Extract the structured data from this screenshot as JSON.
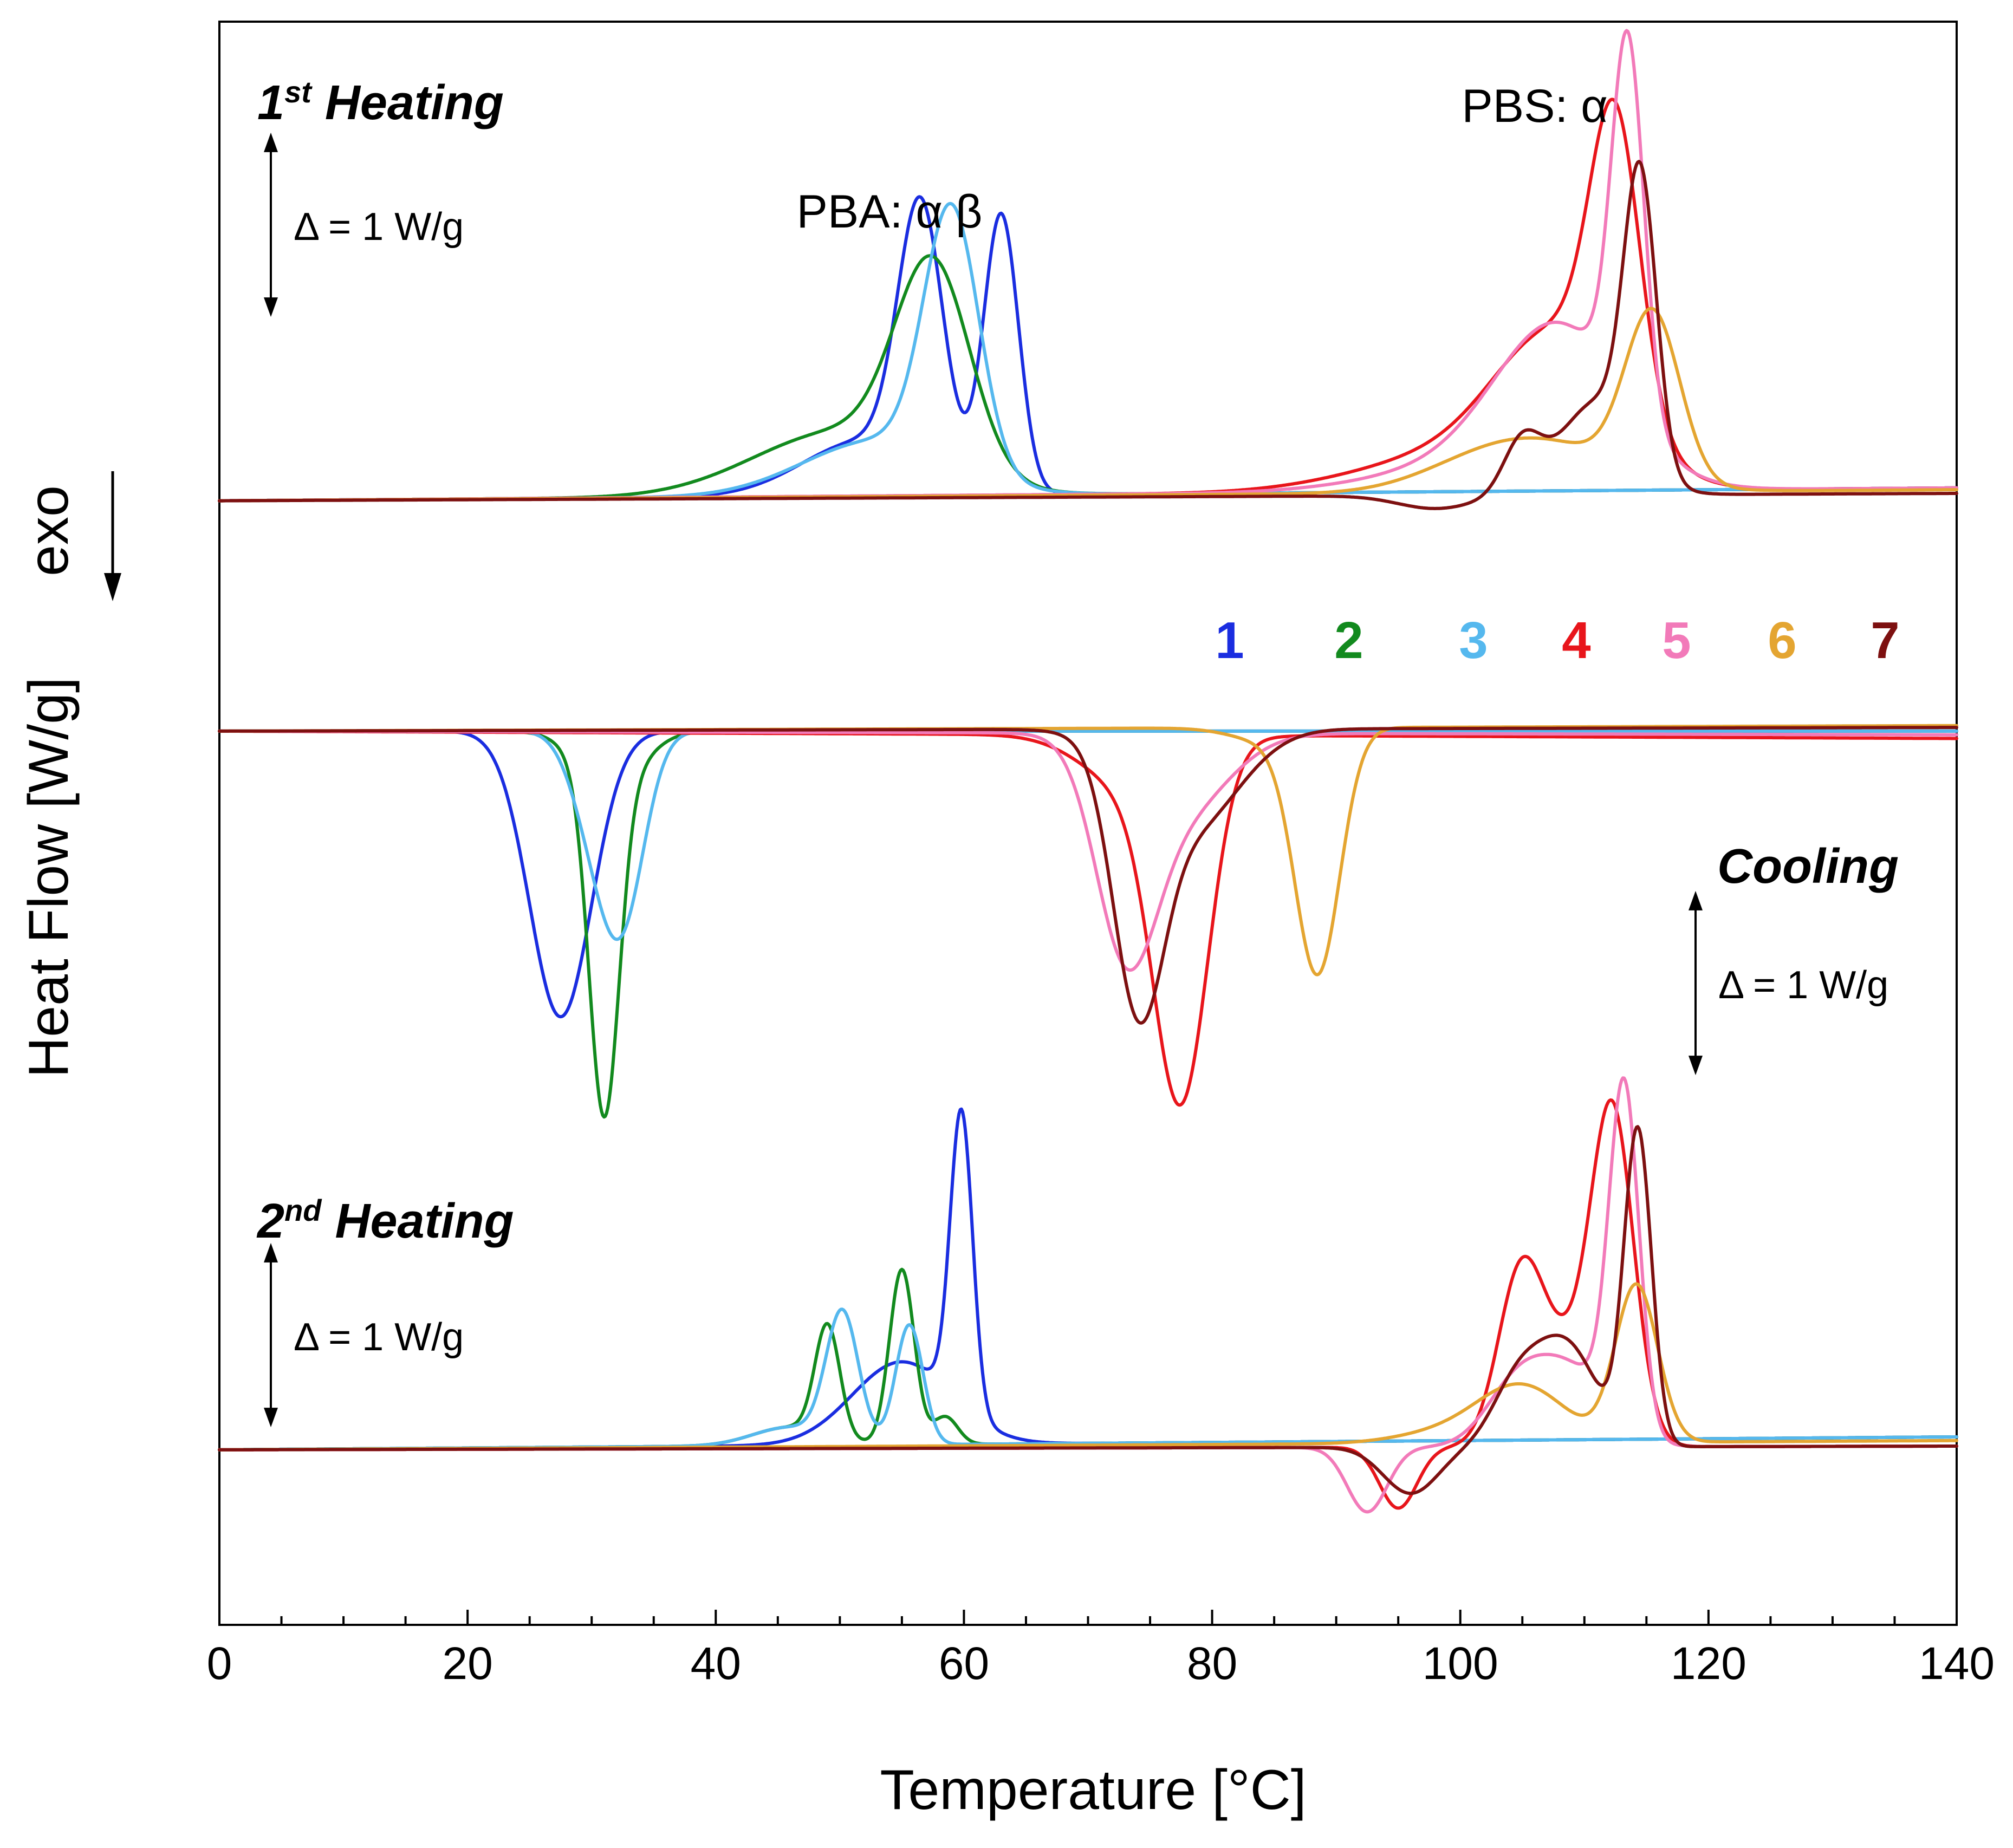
{
  "chart_data": {
    "type": "line",
    "title": "",
    "xlabel": "Temperature [°C]",
    "ylabel": "Heat Flow [W/g]",
    "exo_label": "exo",
    "xlim": [
      0,
      140
    ],
    "x_ticks": [
      0,
      20,
      40,
      60,
      80,
      100,
      120,
      140
    ],
    "ylim": [
      -6.1,
      2.6
    ],
    "legend": [
      {
        "id": "1",
        "label": "1",
        "color": "#1a2de0"
      },
      {
        "id": "2",
        "label": "2",
        "color": "#128a1e"
      },
      {
        "id": "3",
        "label": "3",
        "color": "#55b8ee"
      },
      {
        "id": "4",
        "label": "4",
        "color": "#e8151b"
      },
      {
        "id": "5",
        "label": "5",
        "color": "#f27ab9"
      },
      {
        "id": "6",
        "label": "6",
        "color": "#e4a531"
      },
      {
        "id": "7",
        "label": "7",
        "color": "#7d1010"
      }
    ],
    "panels": [
      {
        "name": "first-heating",
        "title_main": "1",
        "title_sup": "st",
        "title_rest": " Heating",
        "scale_label": "Δ = 1 W/g",
        "scale_value": 1,
        "baseline": 0,
        "annotations": [
          {
            "text": "PBA:  α    β",
            "x": 54
          },
          {
            "text": "PBS:  α",
            "x": 106
          }
        ],
        "series": [
          {
            "id": "1",
            "tilt": 0.07,
            "peaks": [
              [
                56.5,
                1.42,
                1.8
              ],
              [
                63.0,
                1.5,
                1.4
              ],
              [
                52,
                0.3,
                5
              ]
            ]
          },
          {
            "id": "2",
            "tilt": 0.07,
            "peaks": [
              [
                57.5,
                1.1,
                3.0
              ],
              [
                50,
                0.35,
                7
              ]
            ]
          },
          {
            "id": "3",
            "tilt": 0.07,
            "peaks": [
              [
                59.0,
                1.4,
                2.2
              ],
              [
                53,
                0.3,
                6
              ]
            ]
          },
          {
            "id": "4",
            "tilt": 0.07,
            "peaks": [
              [
                112.5,
                1.55,
                2.0
              ],
              [
                108,
                0.75,
                5
              ],
              [
                100,
                0.2,
                8
              ]
            ]
          },
          {
            "id": "5",
            "tilt": 0.07,
            "peaks": [
              [
                113.5,
                2.0,
                1.3
              ],
              [
                108,
                0.8,
                5
              ],
              [
                102,
                0.15,
                8
              ]
            ]
          },
          {
            "id": "6",
            "tilt": 0.06,
            "peaks": [
              [
                115.5,
                0.9,
                2.2
              ],
              [
                107,
                0.25,
                6
              ],
              [
                101,
                0.08,
                5
              ]
            ]
          },
          {
            "id": "7",
            "tilt": 0.04,
            "peaks": [
              [
                114.5,
                1.55,
                1.3
              ],
              [
                111,
                0.5,
                3
              ],
              [
                105,
                0.28,
                1.5
              ],
              [
                98,
                -0.07,
                3
              ]
            ]
          }
        ]
      },
      {
        "name": "cooling",
        "title_main": "Cooling",
        "title_sup": "",
        "title_rest": "",
        "scale_label": "Δ = 1 W/g",
        "scale_value": 1,
        "baseline": -1.25,
        "annotations": [],
        "series": [
          {
            "id": "1",
            "tilt": 0.0,
            "peaks": [
              [
                27.5,
                -1.55,
                2.5
              ]
            ]
          },
          {
            "id": "2",
            "tilt": 0.0,
            "peaks": [
              [
                31.0,
                -1.8,
                1.2
              ],
              [
                31.5,
                -0.3,
                2.5
              ]
            ]
          },
          {
            "id": "3",
            "tilt": 0.0,
            "peaks": [
              [
                32.5,
                -0.95,
                1.8
              ],
              [
                30.0,
                -0.4,
                1.8
              ]
            ]
          },
          {
            "id": "4",
            "tilt": -0.04,
            "peaks": [
              [
                77.5,
                -1.8,
                2.2
              ],
              [
                74,
                -0.3,
                4
              ]
            ]
          },
          {
            "id": "5",
            "tilt": -0.02,
            "peaks": [
              [
                73.0,
                -1.0,
                2.4
              ],
              [
                77,
                -0.45,
                4
              ]
            ]
          },
          {
            "id": "6",
            "tilt": 0.03,
            "peaks": [
              [
                88.5,
                -1.3,
                1.8
              ],
              [
                85,
                -0.08,
                3
              ]
            ]
          },
          {
            "id": "7",
            "tilt": 0.02,
            "peaks": [
              [
                74.0,
                -1.25,
                2.0
              ],
              [
                78,
                -0.55,
                4
              ]
            ]
          }
        ]
      },
      {
        "name": "second-heating",
        "title_main": "2",
        "title_sup": "nd",
        "title_rest": " Heating",
        "scale_label": "Δ = 1 W/g",
        "scale_value": 1,
        "baseline": -5.15,
        "annotations": [],
        "series": [
          {
            "id": "1",
            "tilt": 0.07,
            "peaks": [
              [
                59.8,
                1.6,
                0.9
              ],
              [
                55,
                0.45,
                4
              ]
            ]
          },
          {
            "id": "2",
            "tilt": 0.07,
            "peaks": [
              [
                49.0,
                0.6,
                1.0
              ],
              [
                55.0,
                0.95,
                1.0
              ],
              [
                58.5,
                0.15,
                1.0
              ],
              [
                46,
                0.1,
                3
              ]
            ]
          },
          {
            "id": "3",
            "tilt": 0.07,
            "peaks": [
              [
                50.2,
                0.7,
                1.3
              ],
              [
                55.6,
                0.65,
                1.1
              ],
              [
                46,
                0.1,
                3
              ]
            ]
          },
          {
            "id": "4",
            "tilt": 0.02,
            "peaks": [
              [
                112.3,
                1.65,
                1.7
              ],
              [
                104.8,
                0.78,
                1.8
              ],
              [
                108.5,
                0.5,
                3
              ],
              [
                95,
                -0.33,
                1.5
              ]
            ]
          },
          {
            "id": "5",
            "tilt": 0.02,
            "peaks": [
              [
                113.2,
                1.85,
                1.2
              ],
              [
                104.5,
                0.3,
                2.5
              ],
              [
                109,
                0.4,
                3
              ],
              [
                92.5,
                -0.35,
                1.6
              ]
            ]
          },
          {
            "id": "6",
            "tilt": 0.05,
            "peaks": [
              [
                114.2,
                0.85,
                1.7
              ],
              [
                105,
                0.3,
                3.5
              ],
              [
                99,
                0.06,
                4
              ]
            ]
          },
          {
            "id": "7",
            "tilt": 0.02,
            "peaks": [
              [
                114.3,
                1.7,
                1.1
              ],
              [
                108.5,
                0.55,
                2.5
              ],
              [
                104.5,
                0.3,
                2
              ],
              [
                96,
                -0.25,
                2.2
              ]
            ]
          }
        ]
      }
    ]
  }
}
